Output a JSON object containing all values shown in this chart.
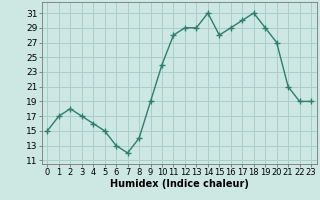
{
  "x": [
    0,
    1,
    2,
    3,
    4,
    5,
    6,
    7,
    8,
    9,
    10,
    11,
    12,
    13,
    14,
    15,
    16,
    17,
    18,
    19,
    20,
    21,
    22,
    23
  ],
  "y": [
    15,
    17,
    18,
    17,
    16,
    15,
    13,
    12,
    14,
    19,
    24,
    28,
    29,
    29,
    31,
    28,
    29,
    30,
    31,
    29,
    27,
    21,
    19,
    19
  ],
  "line_color": "#2e7d6e",
  "marker": "+",
  "bg_color": "#cde8e2",
  "grid_color": "#aacfc8",
  "xlabel": "Humidex (Indice chaleur)",
  "yticks": [
    11,
    13,
    15,
    17,
    19,
    21,
    23,
    25,
    27,
    29,
    31
  ],
  "ylim": [
    10.5,
    32.5
  ],
  "xlim": [
    -0.5,
    23.5
  ],
  "xtick_labels": [
    "0",
    "1",
    "2",
    "3",
    "4",
    "5",
    "6",
    "7",
    "8",
    "9",
    "10",
    "11",
    "12",
    "13",
    "14",
    "15",
    "16",
    "17",
    "18",
    "19",
    "20",
    "21",
    "22",
    "23"
  ],
  "label_fontsize": 7,
  "tick_fontsize": 6.5
}
